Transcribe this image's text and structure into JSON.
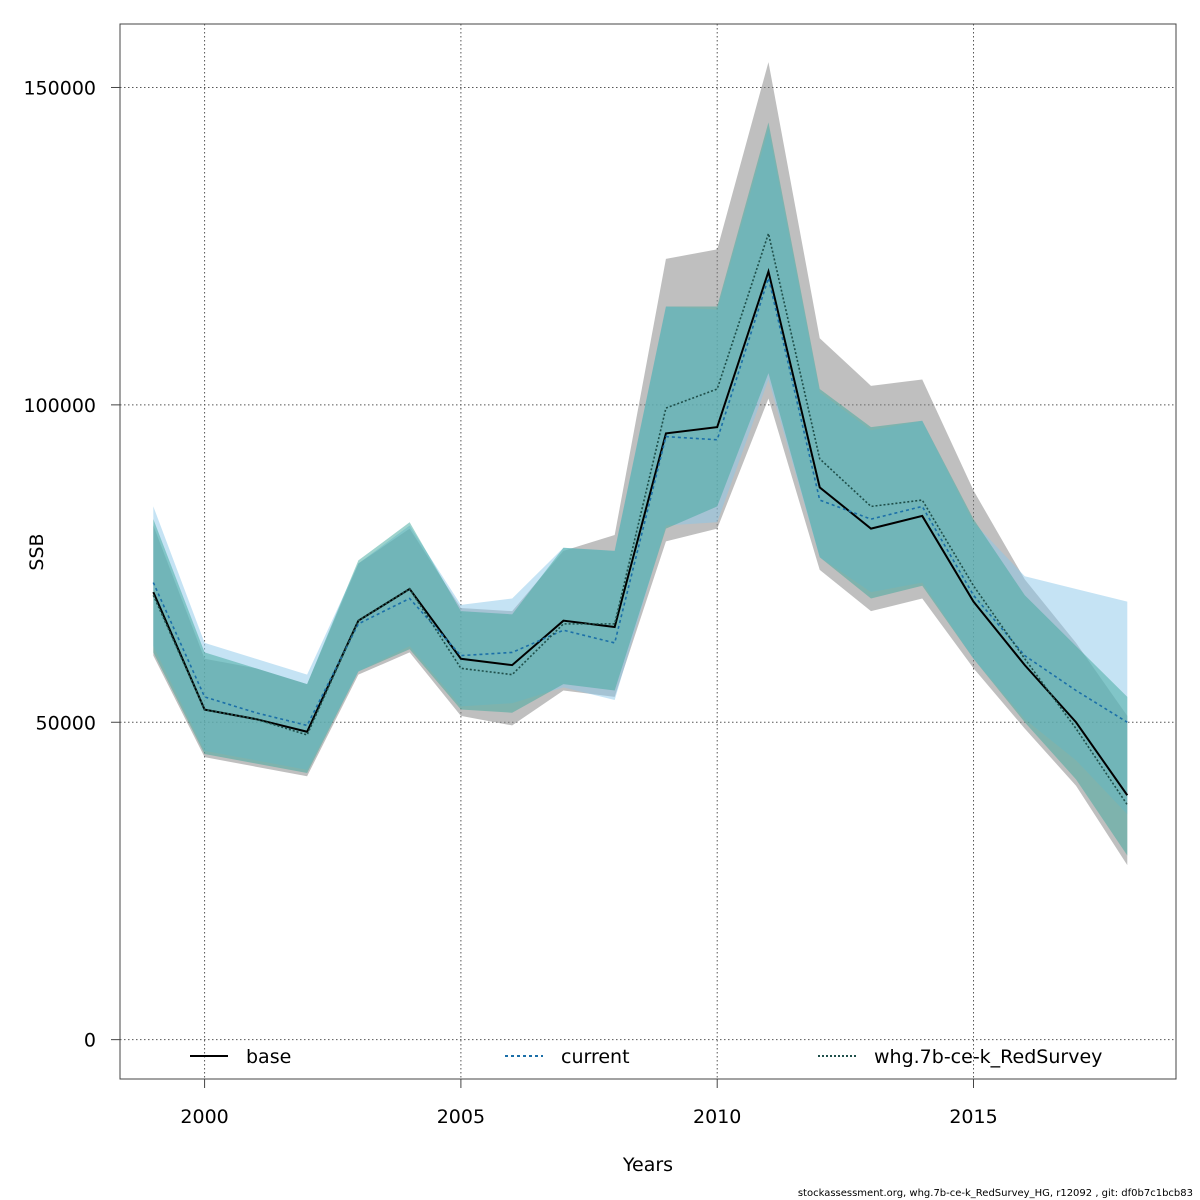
{
  "chart_data": {
    "type": "area",
    "xlabel": "Years",
    "ylabel": "SSB",
    "xlim": [
      1998.35,
      2018.95
    ],
    "ylim": [
      -6200,
      160000
    ],
    "x_ticks": [
      2000,
      2005,
      2010,
      2015
    ],
    "y_ticks": [
      0,
      50000,
      100000,
      150000
    ],
    "x_tick_labels": [
      "2000",
      "2005",
      "2010",
      "2015"
    ],
    "y_tick_labels": [
      "0",
      "50000",
      "100000",
      "150000"
    ],
    "grid": true,
    "legend_position": "bottom",
    "x": [
      1999,
      2000,
      2001,
      2002,
      2003,
      2004,
      2005,
      2006,
      2007,
      2008,
      2009,
      2010,
      2011,
      2012,
      2013,
      2014,
      2015,
      2016,
      2017,
      2018
    ],
    "series": [
      {
        "name": "base",
        "line_color": "#000000",
        "line_style": "solid",
        "band_color": "#7f7f7f",
        "values": [
          70500,
          52000,
          50500,
          48500,
          66000,
          71000,
          60000,
          59000,
          66000,
          65000,
          95500,
          96500,
          121000,
          87000,
          80500,
          82500,
          69000,
          59000,
          50000,
          38500
        ],
        "lower": [
          60500,
          44500,
          43000,
          41500,
          57500,
          61000,
          51000,
          49500,
          55000,
          54000,
          78500,
          80500,
          101000,
          74000,
          67500,
          69500,
          58500,
          49000,
          40000,
          27500
        ],
        "upper": [
          81000,
          60000,
          58500,
          56000,
          75000,
          80500,
          68000,
          67500,
          77000,
          79500,
          123000,
          124500,
          154000,
          110500,
          103000,
          104000,
          86500,
          72500,
          62500,
          51000
        ]
      },
      {
        "name": "current",
        "line_color": "#1b6fa8",
        "line_style": "dotted",
        "band_color": "#8cc8ea",
        "values": [
          72000,
          54000,
          51500,
          49500,
          65500,
          69500,
          60500,
          61000,
          64500,
          62500,
          95000,
          94500,
          120000,
          85000,
          82000,
          84000,
          70000,
          60500,
          55000,
          50000
        ],
        "lower": [
          62000,
          45500,
          44000,
          42500,
          58000,
          62000,
          52500,
          53000,
          55500,
          53500,
          81000,
          81500,
          104000,
          76000,
          70500,
          72000,
          60000,
          50500,
          44000,
          35500
        ],
        "upper": [
          84000,
          62500,
          60000,
          57500,
          75000,
          81000,
          68500,
          69500,
          77500,
          77000,
          115500,
          115000,
          143500,
          102000,
          96000,
          97500,
          81500,
          73000,
          71000,
          69000
        ]
      },
      {
        "name": "whg.7b-ce-k_RedSurvey",
        "line_color": "#1f4f4a",
        "line_style": "dotdash",
        "band_color": "#3da89c",
        "values": [
          70000,
          52000,
          50500,
          48000,
          66000,
          71000,
          58500,
          57500,
          65500,
          65500,
          99500,
          102500,
          127000,
          91500,
          84000,
          85000,
          71500,
          60000,
          49000,
          37000
        ],
        "lower": [
          61000,
          45000,
          43500,
          42000,
          58000,
          61500,
          52000,
          51500,
          56000,
          55000,
          80500,
          84000,
          105000,
          76000,
          69500,
          71500,
          60000,
          50000,
          41000,
          29000
        ],
        "upper": [
          82000,
          61000,
          58500,
          56000,
          75500,
          81500,
          67500,
          67000,
          77500,
          77000,
          115500,
          115500,
          144500,
          102500,
          96500,
          97500,
          82000,
          70000,
          62000,
          54000
        ]
      }
    ]
  },
  "footer": "stockassessment.org, whg.7b-ce-k_RedSurvey_HG, r12092 , git: df0b7c1bcb83"
}
